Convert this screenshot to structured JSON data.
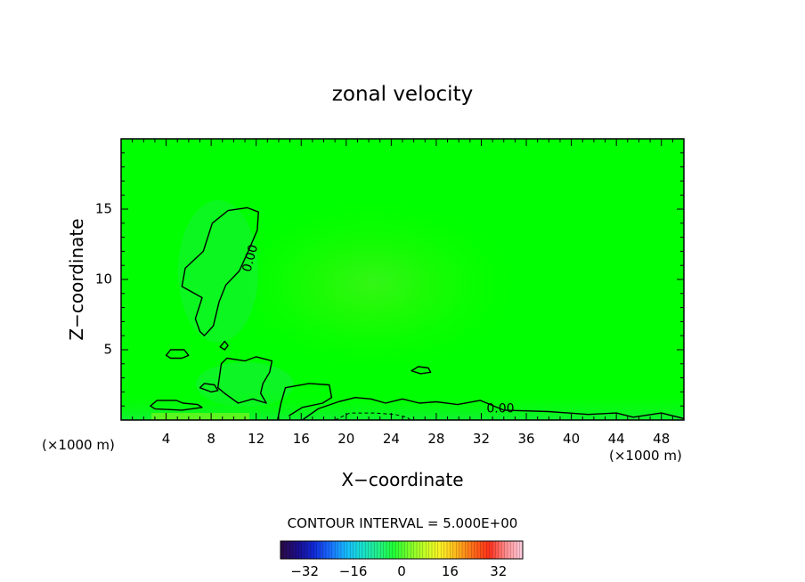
{
  "chart_data": {
    "type": "heatmap",
    "title": "zonal velocity",
    "xlabel": "X−coordinate",
    "ylabel": "Z−coordinate",
    "x_unit_left": "(×1000 m)",
    "x_unit_right": "(×1000 m)",
    "xlim": [
      0,
      50
    ],
    "ylim": [
      0,
      20
    ],
    "xticks": [
      4,
      8,
      12,
      16,
      20,
      24,
      28,
      32,
      36,
      40,
      44,
      48
    ],
    "xtick_labels": [
      "4",
      "8",
      "12",
      "16",
      "20",
      "24",
      "28",
      "32",
      "36",
      "40",
      "44",
      "48"
    ],
    "yticks": [
      5,
      10,
      15
    ],
    "ytick_labels": [
      "5",
      "10",
      "15"
    ],
    "grid": false,
    "field_description_levels": "nearly uniform ~0 with small positive core near x=20-24, z=8-12 and weak negative values near the surface",
    "contour_interval_label": "CONTOUR INTERVAL = 5.000E+00",
    "contour_labels": [
      {
        "text": "0.00",
        "x": 11.5,
        "z": 11.5,
        "rotate": -75
      },
      {
        "text": "0.00",
        "x": 33.7,
        "z": 0.8,
        "rotate": 0
      }
    ],
    "zero_contours": [
      {
        "name": "upper-lobe",
        "points": [
          [
            7,
            6.3
          ],
          [
            6.6,
            7.2
          ],
          [
            7.2,
            8.7
          ],
          [
            5.4,
            9.5
          ],
          [
            5.7,
            10.8
          ],
          [
            7.3,
            12
          ],
          [
            8.1,
            14
          ],
          [
            9.5,
            14.9
          ],
          [
            11.2,
            15.1
          ],
          [
            12.2,
            14.8
          ],
          [
            12.1,
            13.5
          ],
          [
            11.3,
            12
          ],
          [
            10.5,
            10.6
          ],
          [
            9.3,
            9.6
          ],
          [
            8.7,
            8.4
          ],
          [
            8.2,
            6.7
          ],
          [
            7.4,
            6
          ]
        ]
      },
      {
        "name": "small-blob-1",
        "points": [
          [
            4,
            4.6
          ],
          [
            4.4,
            5
          ],
          [
            5.6,
            5
          ],
          [
            6,
            4.6
          ],
          [
            5.4,
            4.4
          ],
          [
            4.4,
            4.4
          ]
        ]
      },
      {
        "name": "small-blob-2",
        "points": [
          [
            8.8,
            5.2
          ],
          [
            9.2,
            5.6
          ],
          [
            9.5,
            5.3
          ],
          [
            9.2,
            5
          ]
        ]
      },
      {
        "name": "lower-left",
        "points": [
          [
            8.6,
            2.3
          ],
          [
            8.9,
            4
          ],
          [
            9.4,
            4.4
          ],
          [
            11,
            4.2
          ],
          [
            12,
            4.5
          ],
          [
            13.4,
            4.2
          ],
          [
            13.2,
            3.4
          ],
          [
            12.6,
            2.6
          ],
          [
            12.4,
            1.9
          ],
          [
            12.9,
            1.2
          ],
          [
            11.7,
            1.5
          ],
          [
            10.4,
            1.2
          ],
          [
            9.2,
            1.9
          ]
        ]
      },
      {
        "name": "small-blob-3",
        "points": [
          [
            7,
            2.3
          ],
          [
            7.4,
            2.6
          ],
          [
            8.3,
            2.5
          ],
          [
            8.6,
            2.1
          ],
          [
            8,
            2
          ]
        ]
      },
      {
        "name": "left-surface",
        "points": [
          [
            2.6,
            1
          ],
          [
            3.2,
            1.4
          ],
          [
            4.9,
            1.4
          ],
          [
            5.5,
            1.2
          ],
          [
            6.8,
            1.1
          ],
          [
            7.2,
            0.9
          ],
          [
            5.4,
            0.7
          ],
          [
            3,
            0.8
          ]
        ]
      },
      {
        "name": "mid-lower",
        "points": [
          [
            13.9,
            0
          ],
          [
            14.2,
            1.2
          ],
          [
            14.6,
            2.3
          ],
          [
            16.7,
            2.6
          ],
          [
            18.5,
            2.5
          ],
          [
            18.7,
            1.6
          ],
          [
            17.9,
            1.2
          ],
          [
            16.1,
            0.9
          ],
          [
            14.9,
            0.3
          ]
        ]
      },
      {
        "name": "small-blob-4",
        "points": [
          [
            25.8,
            3.5
          ],
          [
            26.4,
            3.8
          ],
          [
            27.3,
            3.7
          ],
          [
            27.5,
            3.4
          ],
          [
            26.6,
            3.3
          ]
        ]
      },
      {
        "name": "surface-ridge",
        "points": [
          [
            16.1,
            0
          ],
          [
            17.5,
            0.8
          ],
          [
            19.3,
            1.3
          ],
          [
            20.8,
            1.6
          ],
          [
            22.2,
            1.5
          ],
          [
            23.5,
            1.2
          ],
          [
            25,
            1.5
          ],
          [
            26.5,
            1.2
          ],
          [
            28,
            1.3
          ],
          [
            29.9,
            1.1
          ],
          [
            31.9,
            1.4
          ],
          [
            34,
            0.7
          ],
          [
            38,
            0.6
          ],
          [
            41.5,
            0.4
          ],
          [
            44,
            0.5
          ],
          [
            45.5,
            0.2
          ],
          [
            48,
            0.5
          ],
          [
            50,
            0.1
          ]
        ]
      }
    ],
    "negative_contours": [
      {
        "name": "surface-dip",
        "points": [
          [
            19,
            0
          ],
          [
            20.3,
            0.5
          ],
          [
            22.5,
            0.5
          ],
          [
            24.3,
            0.4
          ],
          [
            25.4,
            0.2
          ],
          [
            25.7,
            0
          ]
        ]
      }
    ],
    "colorbar": {
      "ticks": [
        -32,
        -16,
        0,
        16,
        32
      ],
      "tick_labels": [
        "−32",
        "−16",
        "0",
        "16",
        "32"
      ],
      "range": [
        -40,
        40
      ],
      "palette": [
        "#2a0a4a",
        "#1a0e8c",
        "#1029d8",
        "#1a6cff",
        "#16b9ff",
        "#18e0d0",
        "#22f08a",
        "#20ff36",
        "#7cff2a",
        "#c8ff24",
        "#fff024",
        "#ffb21c",
        "#ff6a18",
        "#ff2f1a",
        "#ff8a8a",
        "#ffc8d8"
      ],
      "field_color": "#00ff00"
    }
  }
}
